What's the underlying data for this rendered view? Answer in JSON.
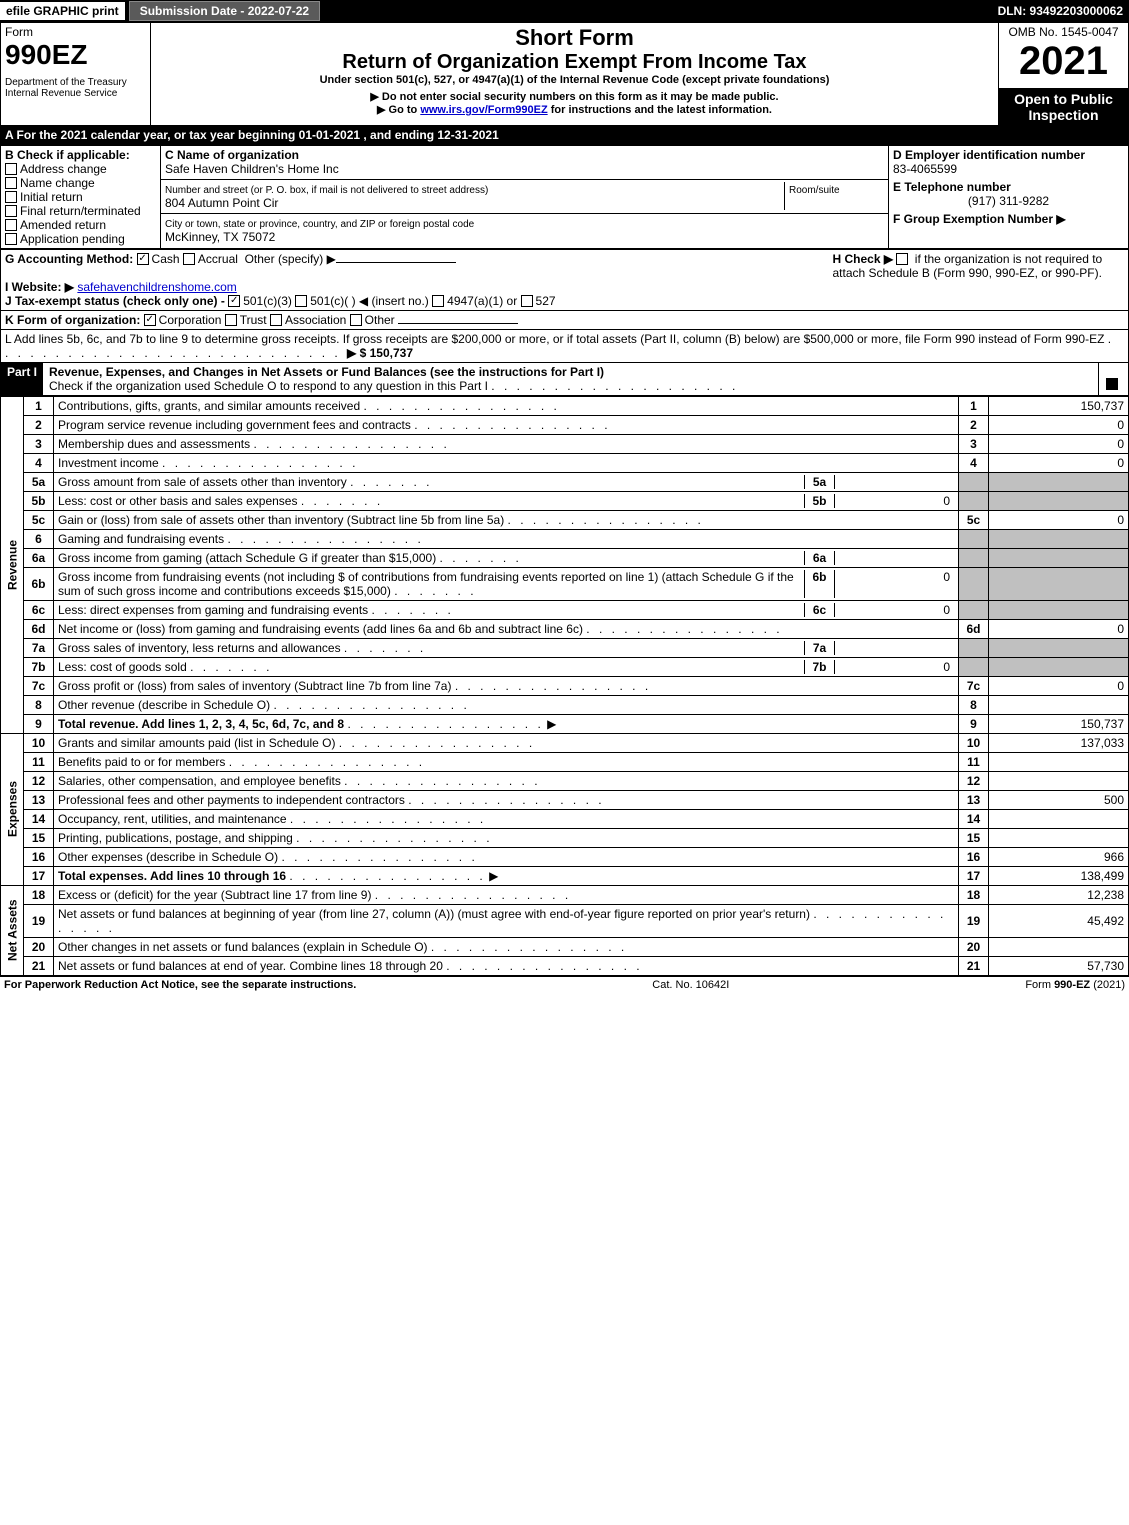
{
  "topbar": {
    "efile": "efile GRAPHIC print",
    "submission": "Submission Date - 2022-07-22",
    "dln": "DLN: 93492203000062"
  },
  "header": {
    "form_word": "Form",
    "form_number": "990EZ",
    "dept": "Department of the Treasury\nInternal Revenue Service",
    "title1": "Short Form",
    "title2": "Return of Organization Exempt From Income Tax",
    "subtitle": "Under section 501(c), 527, or 4947(a)(1) of the Internal Revenue Code (except private foundations)",
    "note1": "▶ Do not enter social security numbers on this form as it may be made public.",
    "note2_pre": "▶ Go to ",
    "note2_link": "www.irs.gov/Form990EZ",
    "note2_post": " for instructions and the latest information.",
    "omb": "OMB No. 1545-0047",
    "year": "2021",
    "inspection": "Open to Public Inspection"
  },
  "sectionA": {
    "A": "A  For the 2021 calendar year, or tax year beginning 01-01-2021 , and ending 12-31-2021",
    "B_label": "B  Check if applicable:",
    "B_opts": [
      "Address change",
      "Name change",
      "Initial return",
      "Final return/terminated",
      "Amended return",
      "Application pending"
    ],
    "C_name_label": "C Name of organization",
    "C_name": "Safe Haven Children's Home Inc",
    "C_street_label": "Number and street (or P. O. box, if mail is not delivered to street address)",
    "C_street": "804 Autumn Point Cir",
    "C_room_label": "Room/suite",
    "C_city_label": "City or town, state or province, country, and ZIP or foreign postal code",
    "C_city": "McKinney, TX  75072",
    "D_label": "D Employer identification number",
    "D_val": "83-4065599",
    "E_label": "E Telephone number",
    "E_val": "(917) 311-9282",
    "F_label": "F Group Exemption Number  ▶",
    "G_label": "G Accounting Method:",
    "G_cash": "Cash",
    "G_accrual": "Accrual",
    "G_other": "Other (specify) ▶",
    "H_label": "H  Check ▶",
    "H_text": "if the organization is not required to attach Schedule B (Form 990, 990-EZ, or 990-PF).",
    "I_label": "I Website: ▶",
    "I_val": "safehavenchildrenshome.com",
    "J_label": "J Tax-exempt status (check only one) -",
    "J_501c3": "501(c)(3)",
    "J_501c": "501(c)(  ) ◀ (insert no.)",
    "J_4947": "4947(a)(1) or",
    "J_527": "527",
    "K_label": "K Form of organization:",
    "K_opts": [
      "Corporation",
      "Trust",
      "Association",
      "Other"
    ],
    "L_text": "L Add lines 5b, 6c, and 7b to line 9 to determine gross receipts. If gross receipts are $200,000 or more, or if total assets (Part II, column (B) below) are $500,000 or more, file Form 990 instead of Form 990-EZ",
    "L_val": "▶ $ 150,737"
  },
  "part1": {
    "header": "Part I",
    "title": "Revenue, Expenses, and Changes in Net Assets or Fund Balances (see the instructions for Part I)",
    "check_note": "Check if the organization used Schedule O to respond to any question in this Part I",
    "revenue_label": "Revenue",
    "expenses_label": "Expenses",
    "netassets_label": "Net Assets",
    "lines": {
      "1": {
        "desc": "Contributions, gifts, grants, and similar amounts received",
        "box": "1",
        "val": "150,737"
      },
      "2": {
        "desc": "Program service revenue including government fees and contracts",
        "box": "2",
        "val": "0"
      },
      "3": {
        "desc": "Membership dues and assessments",
        "box": "3",
        "val": "0"
      },
      "4": {
        "desc": "Investment income",
        "box": "4",
        "val": "0"
      },
      "5a": {
        "desc": "Gross amount from sale of assets other than inventory",
        "sub": "5a",
        "subval": ""
      },
      "5b": {
        "desc": "Less: cost or other basis and sales expenses",
        "sub": "5b",
        "subval": "0"
      },
      "5c": {
        "desc": "Gain or (loss) from sale of assets other than inventory (Subtract line 5b from line 5a)",
        "box": "5c",
        "val": "0"
      },
      "6": {
        "desc": "Gaming and fundraising events"
      },
      "6a": {
        "desc": "Gross income from gaming (attach Schedule G if greater than $15,000)",
        "sub": "6a",
        "subval": ""
      },
      "6b": {
        "desc": "Gross income from fundraising events (not including $                    of contributions from fundraising events reported on line 1) (attach Schedule G if the sum of such gross income and contributions exceeds $15,000)",
        "sub": "6b",
        "subval": "0"
      },
      "6c": {
        "desc": "Less: direct expenses from gaming and fundraising events",
        "sub": "6c",
        "subval": "0"
      },
      "6d": {
        "desc": "Net income or (loss) from gaming and fundraising events (add lines 6a and 6b and subtract line 6c)",
        "box": "6d",
        "val": "0"
      },
      "7a": {
        "desc": "Gross sales of inventory, less returns and allowances",
        "sub": "7a",
        "subval": ""
      },
      "7b": {
        "desc": "Less: cost of goods sold",
        "sub": "7b",
        "subval": "0"
      },
      "7c": {
        "desc": "Gross profit or (loss) from sales of inventory (Subtract line 7b from line 7a)",
        "box": "7c",
        "val": "0"
      },
      "8": {
        "desc": "Other revenue (describe in Schedule O)",
        "box": "8",
        "val": ""
      },
      "9": {
        "desc": "Total revenue. Add lines 1, 2, 3, 4, 5c, 6d, 7c, and 8",
        "box": "9",
        "val": "150,737",
        "arrow": true,
        "bold": true
      },
      "10": {
        "desc": "Grants and similar amounts paid (list in Schedule O)",
        "box": "10",
        "val": "137,033"
      },
      "11": {
        "desc": "Benefits paid to or for members",
        "box": "11",
        "val": ""
      },
      "12": {
        "desc": "Salaries, other compensation, and employee benefits",
        "box": "12",
        "val": ""
      },
      "13": {
        "desc": "Professional fees and other payments to independent contractors",
        "box": "13",
        "val": "500"
      },
      "14": {
        "desc": "Occupancy, rent, utilities, and maintenance",
        "box": "14",
        "val": ""
      },
      "15": {
        "desc": "Printing, publications, postage, and shipping",
        "box": "15",
        "val": ""
      },
      "16": {
        "desc": "Other expenses (describe in Schedule O)",
        "box": "16",
        "val": "966"
      },
      "17": {
        "desc": "Total expenses. Add lines 10 through 16",
        "box": "17",
        "val": "138,499",
        "arrow": true,
        "bold": true
      },
      "18": {
        "desc": "Excess or (deficit) for the year (Subtract line 17 from line 9)",
        "box": "18",
        "val": "12,238"
      },
      "19": {
        "desc": "Net assets or fund balances at beginning of year (from line 27, column (A)) (must agree with end-of-year figure reported on prior year's return)",
        "box": "19",
        "val": "45,492"
      },
      "20": {
        "desc": "Other changes in net assets or fund balances (explain in Schedule O)",
        "box": "20",
        "val": ""
      },
      "21": {
        "desc": "Net assets or fund balances at end of year. Combine lines 18 through 20",
        "box": "21",
        "val": "57,730"
      }
    }
  },
  "footer": {
    "left": "For Paperwork Reduction Act Notice, see the separate instructions.",
    "center": "Cat. No. 10642I",
    "right_pre": "Form ",
    "right_bold": "990-EZ",
    "right_post": " (2021)"
  }
}
